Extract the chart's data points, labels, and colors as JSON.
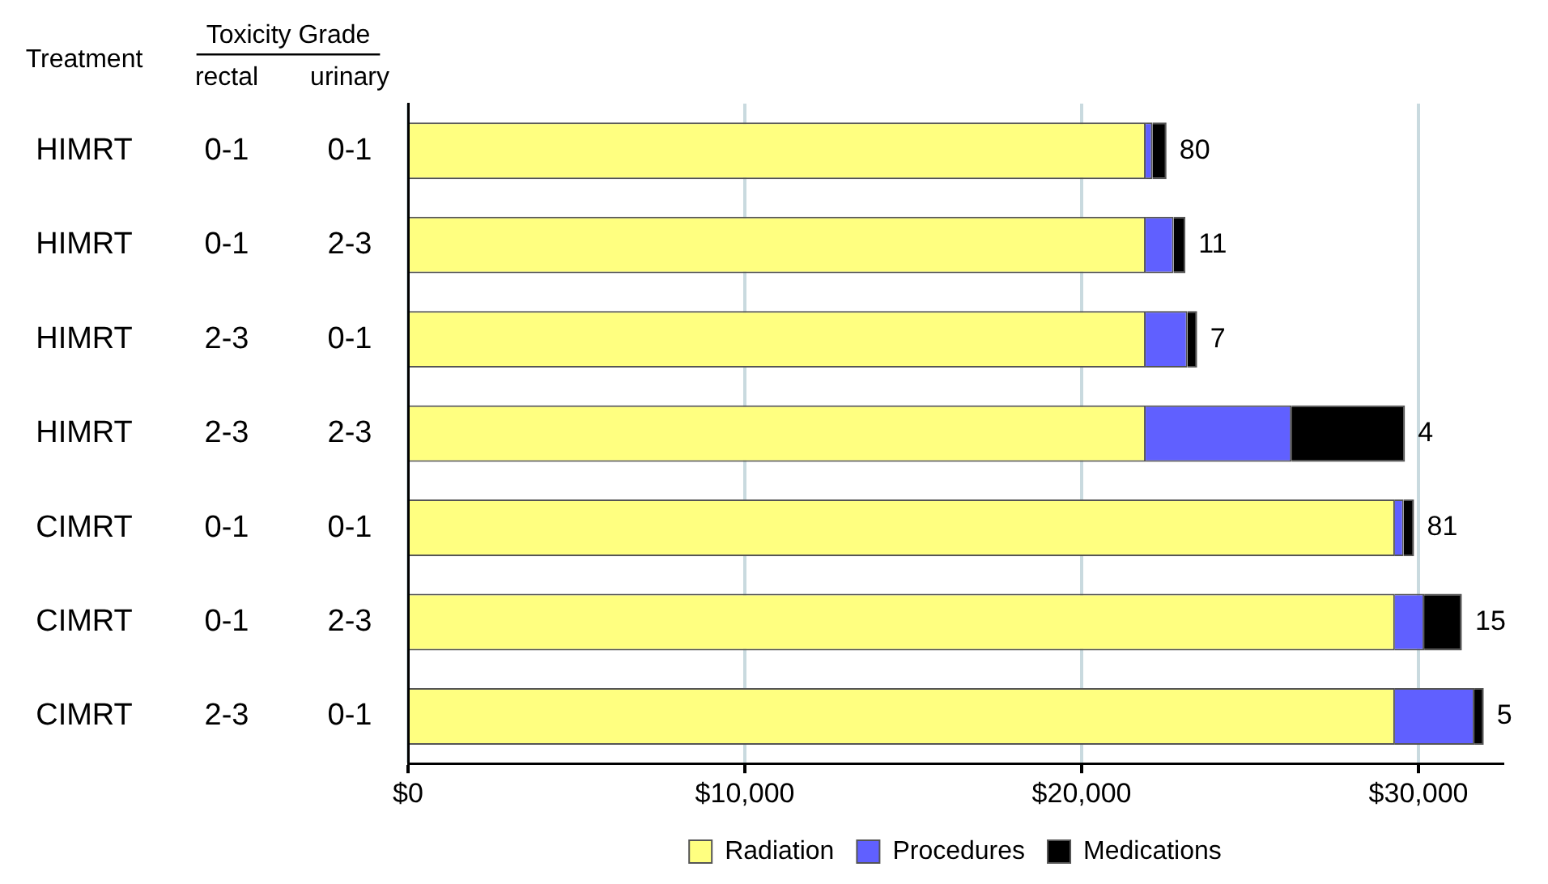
{
  "chart_data": {
    "type": "bar",
    "orientation": "horizontal",
    "stacked": true,
    "categories": [
      "HIMRT 0-1 0-1",
      "HIMRT 0-1 2-3",
      "HIMRT 2-3 0-1",
      "HIMRT 2-3 2-3",
      "CIMRT 0-1 0-1",
      "CIMRT 0-1 2-3",
      "CIMRT 2-3 0-1"
    ],
    "series": [
      {
        "name": "Radiation",
        "color": "#ffff80",
        "values": [
          21900,
          21900,
          21900,
          21900,
          29300,
          29300,
          29300
        ]
      },
      {
        "name": "Procedures",
        "color": "#6060ff",
        "values": [
          200,
          830,
          1240,
          4330,
          260,
          870,
          2360
        ]
      },
      {
        "name": "Medications",
        "color": "#000000",
        "values": [
          420,
          350,
          290,
          3370,
          310,
          1120,
          280
        ]
      }
    ],
    "xlim": [
      0,
      32500
    ],
    "xticks": [
      {
        "value": 0,
        "label": "$0"
      },
      {
        "value": 10000,
        "label": "$10,000"
      },
      {
        "value": 20000,
        "label": "$20,000"
      },
      {
        "value": 30000,
        "label": "$30,000"
      }
    ],
    "grid": "x",
    "legend": "bottom",
    "annotations": [
      "Treatment",
      "Toxicity Grade",
      "rectal",
      "urinary",
      {
        "text": "80",
        "x": 22520,
        "y": "HIMRT 0-1 0-1"
      },
      {
        "text": "11",
        "x": 23080,
        "y": "HIMRT 0-1 2-3"
      },
      {
        "text": "7",
        "x": 23430,
        "y": "HIMRT 2-3 0-1"
      },
      {
        "text": "4",
        "x": 29600,
        "y": "HIMRT 2-3 2-3"
      },
      {
        "text": "81",
        "x": 29870,
        "y": "CIMRT 0-1 0-1"
      },
      {
        "text": "15",
        "x": 31300,
        "y": "CIMRT 0-1 2-3"
      },
      {
        "text": "5",
        "x": 31940,
        "y": "CIMRT 2-3 0-1"
      }
    ]
  }
}
